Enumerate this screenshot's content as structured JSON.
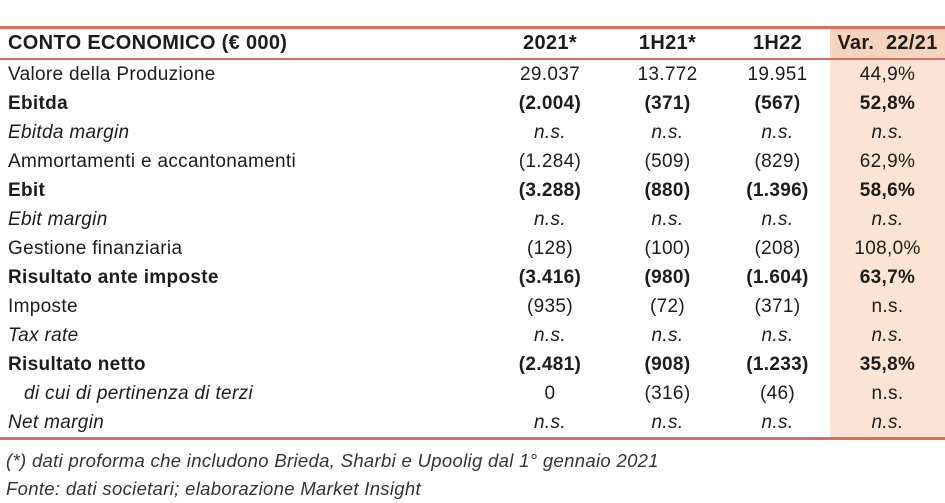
{
  "colors": {
    "accent_line": "#d4705f",
    "var_header_bg": "#f6d3bd",
    "var_body_bg": "#fbe4d3",
    "text": "#1c1c1a"
  },
  "table": {
    "header": {
      "label": "CONTO ECONOMICO (€ 000)",
      "columns": [
        "2021*",
        "1H21*",
        "1H22",
        "Var.  22/21"
      ]
    },
    "rows": [
      {
        "label": "Valore della Produzione",
        "style": "normal",
        "values": [
          "29.037",
          "13.772",
          "19.951",
          "44,9%"
        ]
      },
      {
        "label": "Ebitda",
        "style": "bold",
        "values": [
          "(2.004)",
          "(371)",
          "(567)",
          "52,8%"
        ]
      },
      {
        "label": "Ebitda margin",
        "style": "italic",
        "values": [
          "n.s.",
          "n.s.",
          "n.s.",
          "n.s."
        ]
      },
      {
        "label": "Ammortamenti e accantonamenti",
        "style": "normal",
        "values": [
          "(1.284)",
          "(509)",
          "(829)",
          "62,9%"
        ]
      },
      {
        "label": "Ebit",
        "style": "bold",
        "values": [
          "(3.288)",
          "(880)",
          "(1.396)",
          "58,6%"
        ]
      },
      {
        "label": "Ebit margin",
        "style": "italic",
        "values": [
          "n.s.",
          "n.s.",
          "n.s.",
          "n.s."
        ]
      },
      {
        "label": "Gestione finanziaria",
        "style": "normal",
        "values": [
          "(128)",
          "(100)",
          "(208)",
          "108,0%"
        ]
      },
      {
        "label": "Risultato ante imposte",
        "style": "bold",
        "values": [
          "(3.416)",
          "(980)",
          "(1.604)",
          "63,7%"
        ]
      },
      {
        "label": "Imposte",
        "style": "normal",
        "values": [
          "(935)",
          "(72)",
          "(371)",
          "n.s."
        ]
      },
      {
        "label": "Tax rate",
        "style": "italic",
        "values": [
          "n.s.",
          "n.s.",
          "n.s.",
          "n.s."
        ]
      },
      {
        "label": "Risultato netto",
        "style": "bold",
        "values": [
          "(2.481)",
          "(908)",
          "(1.233)",
          "35,8%"
        ]
      },
      {
        "label": "di cui di pertinenza di terzi",
        "style": "subitem",
        "values": [
          "0",
          "(316)",
          "(46)",
          "n.s."
        ]
      },
      {
        "label": "Net margin",
        "style": "italic",
        "values": [
          "n.s.",
          "n.s.",
          "n.s.",
          "n.s."
        ]
      }
    ]
  },
  "footnotes": [
    "(*) dati proforma che includono Brieda, Sharbi e Upoolig dal 1° gennaio 2021",
    "Fonte: dati societari; elaborazione Market Insight"
  ]
}
